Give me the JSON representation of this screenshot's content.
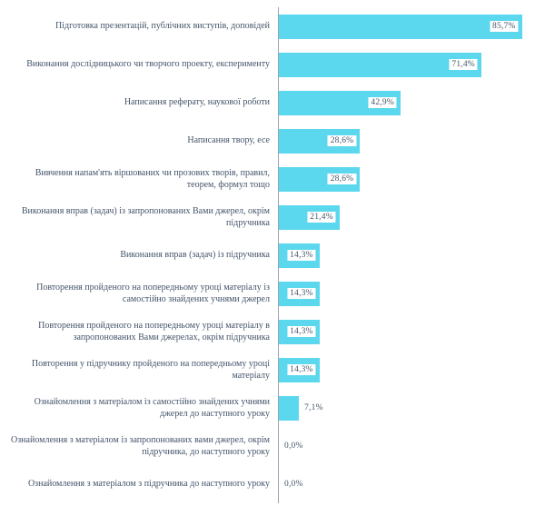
{
  "chart_data": {
    "type": "bar",
    "orientation": "horizontal",
    "title": "",
    "xlabel": "",
    "ylabel": "",
    "xlim": [
      0,
      90
    ],
    "grid": false,
    "legend": "none",
    "bar_color": "#5bd7ee",
    "text_color": "#44546a",
    "axis_line_color": "#9aa3b2",
    "categories": [
      "Підготовка презентацій, публічних виступів, доповідей",
      "Виконання дослідницького чи творчого проекту, експерименту",
      "Написання реферату, наукової роботи",
      "Написання твору, есе",
      "Вивчення напам'ять віршованих чи прозових творів, правил, теорем, формул тощо",
      "Виконання вправ (задач) із запропонованих Вами джерел, окрім підручника",
      "Виконання вправ (задач) із підручника",
      "Повторення пройденого на попередньому уроці матеріалу із самостійно знайдених учнями джерел",
      "Повторення пройденого на попередньому уроці матеріалу в запропонованих Вами джерелах, окрім підручника",
      "Повторення у підручнику пройденого на попередньому уроці матеріалу",
      "Ознайомлення з матеріалом із самостійно знайдених учнями джерел до наступного уроку",
      "Ознайомлення з матеріалом із запропонованих вами джерел, окрім підручника, до наступного уроку",
      "Ознайомлення з матеріалом з підручника до наступного уроку"
    ],
    "values": [
      85.7,
      71.4,
      42.9,
      28.6,
      28.6,
      21.4,
      14.3,
      14.3,
      14.3,
      14.3,
      7.1,
      0.0,
      0.0
    ],
    "value_labels": [
      "85,7%",
      "71,4%",
      "42,9%",
      "28,6%",
      "28,6%",
      "21,4%",
      "14,3%",
      "14,3%",
      "14,3%",
      "14,3%",
      "7,1%",
      "0,0%",
      "0,0%"
    ]
  }
}
